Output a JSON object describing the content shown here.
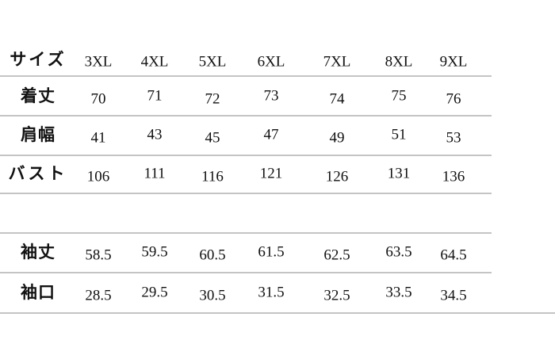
{
  "table": {
    "header": [
      "サイズ",
      "3XL",
      "4XL",
      "5XL",
      "6XL",
      "7XL",
      "8XL",
      "9XL"
    ],
    "rows": [
      [
        "着丈",
        70,
        71,
        72,
        73,
        74,
        75,
        76
      ],
      [
        "肩幅",
        41,
        43,
        45,
        47,
        49,
        51,
        53
      ],
      [
        "バスト",
        106,
        111,
        116,
        121,
        126,
        131,
        136
      ],
      [
        "袖丈",
        58.5,
        59.5,
        60.5,
        61.5,
        62.5,
        63.5,
        64.5
      ],
      [
        "袖口",
        28.5,
        29.5,
        30.5,
        31.5,
        32.5,
        33.5,
        34.5
      ]
    ]
  }
}
